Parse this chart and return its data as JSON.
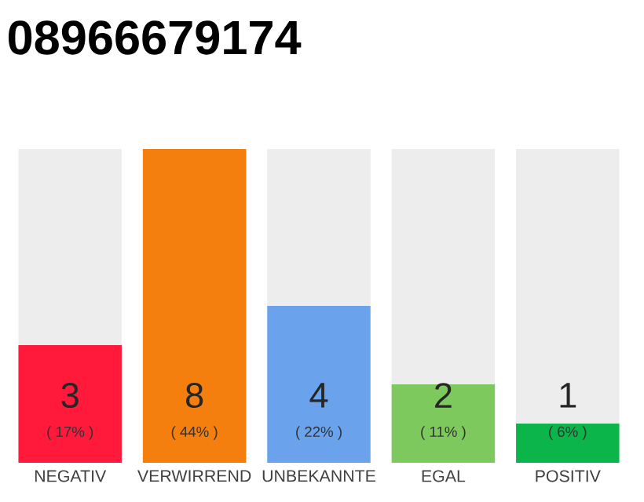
{
  "chart_data": {
    "type": "bar",
    "title": "08966679174",
    "categories": [
      "NEGATIV",
      "VERWIRREND",
      "UNBEKANNTE",
      "EGAL",
      "POSITIV"
    ],
    "values": [
      3,
      8,
      4,
      2,
      1
    ],
    "colors": [
      "#ff1a3c",
      "#f47f0e",
      "#6aa3ec",
      "#7dc95e",
      "#0cb54a"
    ],
    "data_labels": true,
    "annotations": [
      "( 17% )",
      "( 44% )",
      "( 22% )",
      "( 11% )",
      "( 6% )"
    ]
  }
}
